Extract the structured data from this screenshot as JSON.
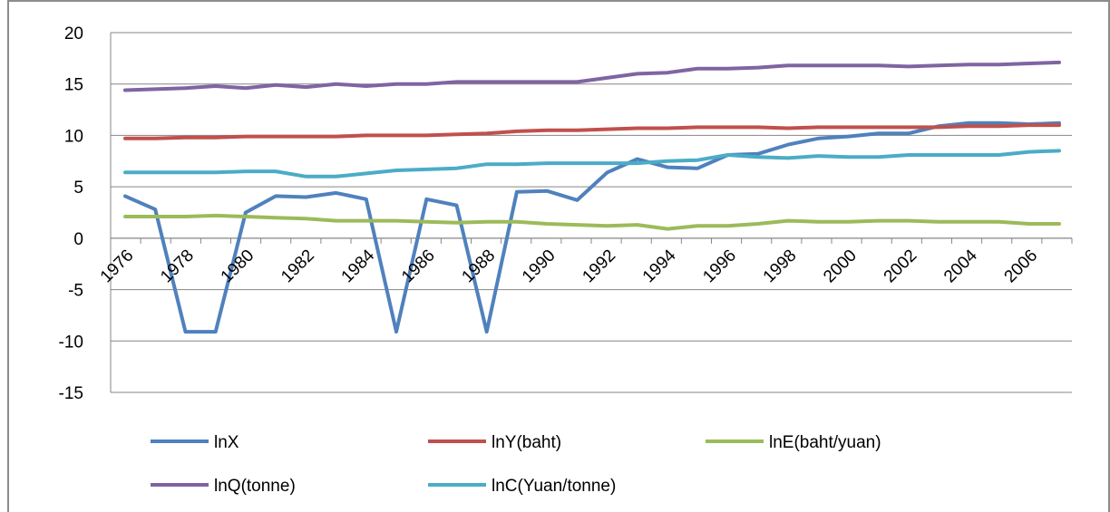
{
  "chart_data": {
    "type": "line",
    "title": "",
    "xlabel": "",
    "ylabel": "",
    "ylim": [
      -15,
      20
    ],
    "yticks": [
      -15,
      -10,
      -5,
      0,
      5,
      10,
      15,
      20
    ],
    "x": [
      1976,
      1977,
      1978,
      1979,
      1980,
      1981,
      1982,
      1983,
      1984,
      1985,
      1986,
      1987,
      1988,
      1989,
      1990,
      1991,
      1992,
      1993,
      1994,
      1995,
      1996,
      1997,
      1998,
      1999,
      2000,
      2001,
      2002,
      2003,
      2004,
      2005,
      2006,
      2007
    ],
    "xtick_labels": [
      "1976",
      "1978",
      "1980",
      "1982",
      "1984",
      "1986",
      "1988",
      "1990",
      "1992",
      "1994",
      "1996",
      "1998",
      "2000",
      "2002",
      "2004",
      "2006"
    ],
    "grid": true,
    "legend_position": "bottom",
    "series": [
      {
        "name": "lnX",
        "color": "#4F81BD",
        "values": [
          4.1,
          2.8,
          -9.1,
          -9.1,
          2.5,
          4.1,
          4.0,
          4.4,
          3.8,
          -9.1,
          3.8,
          3.2,
          -9.1,
          4.5,
          4.6,
          3.7,
          6.4,
          7.7,
          6.9,
          6.8,
          8.1,
          8.2,
          9.1,
          9.7,
          9.9,
          10.2,
          10.2,
          10.9,
          11.2,
          11.2,
          11.1,
          11.2
        ]
      },
      {
        "name": "lnY(baht)",
        "color": "#C0504D",
        "values": [
          9.7,
          9.7,
          9.8,
          9.8,
          9.9,
          9.9,
          9.9,
          9.9,
          10.0,
          10.0,
          10.0,
          10.1,
          10.2,
          10.4,
          10.5,
          10.5,
          10.6,
          10.7,
          10.7,
          10.8,
          10.8,
          10.8,
          10.7,
          10.8,
          10.8,
          10.8,
          10.8,
          10.8,
          10.9,
          10.9,
          11.0,
          11.0
        ]
      },
      {
        "name": "lnE(baht/yuan)",
        "color": "#9BBB59",
        "values": [
          2.1,
          2.1,
          2.1,
          2.2,
          2.1,
          2.0,
          1.9,
          1.7,
          1.7,
          1.7,
          1.6,
          1.5,
          1.6,
          1.6,
          1.4,
          1.3,
          1.2,
          1.3,
          0.9,
          1.2,
          1.2,
          1.4,
          1.7,
          1.6,
          1.6,
          1.7,
          1.7,
          1.6,
          1.6,
          1.6,
          1.4,
          1.4
        ]
      },
      {
        "name": "lnQ(tonne)",
        "color": "#8064A2",
        "values": [
          14.4,
          14.5,
          14.6,
          14.8,
          14.6,
          14.9,
          14.7,
          15.0,
          14.8,
          15.0,
          15.0,
          15.2,
          15.2,
          15.2,
          15.2,
          15.2,
          15.6,
          16.0,
          16.1,
          16.5,
          16.5,
          16.6,
          16.8,
          16.8,
          16.8,
          16.8,
          16.7,
          16.8,
          16.9,
          16.9,
          17.0,
          17.1
        ]
      },
      {
        "name": "lnC(Yuan/tonne)",
        "color": "#4BACC6",
        "values": [
          6.4,
          6.4,
          6.4,
          6.4,
          6.5,
          6.5,
          6.0,
          6.0,
          6.3,
          6.6,
          6.7,
          6.8,
          7.2,
          7.2,
          7.3,
          7.3,
          7.3,
          7.3,
          7.5,
          7.6,
          8.1,
          7.9,
          7.8,
          8.0,
          7.9,
          7.9,
          8.1,
          8.1,
          8.1,
          8.1,
          8.4,
          8.5
        ]
      }
    ]
  }
}
